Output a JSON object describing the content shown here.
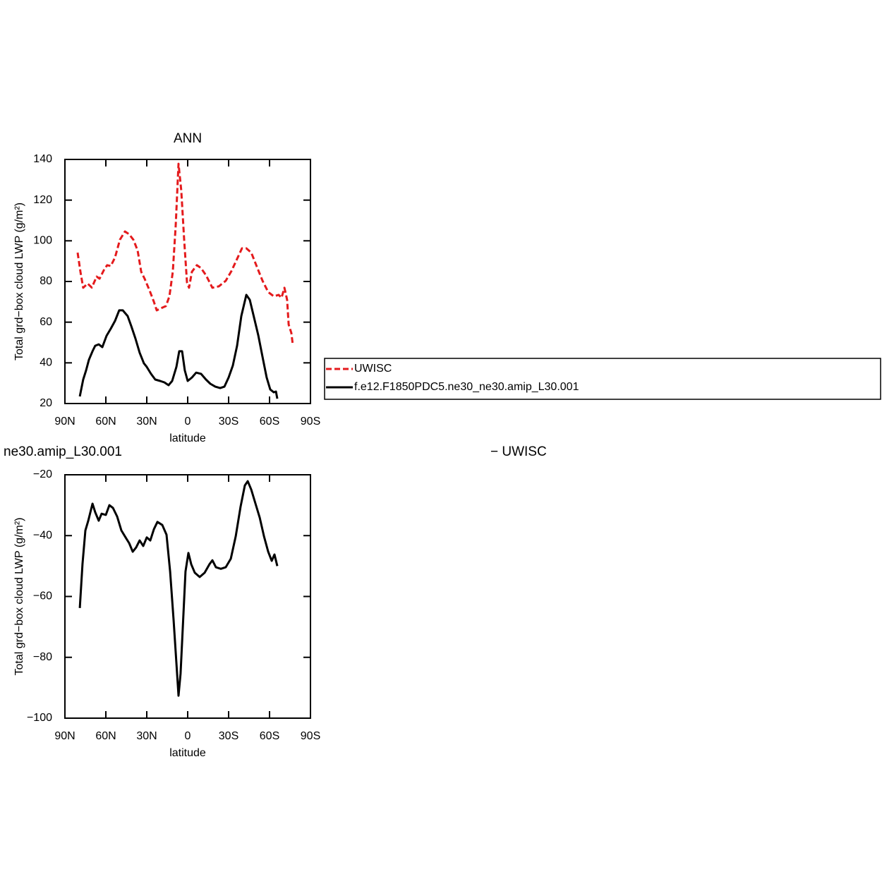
{
  "chart_data": [
    {
      "type": "line",
      "title": "ANN",
      "xlabel": "latitude",
      "ylabel": "Total grd−box cloud LWP (g/m²)",
      "xlim": [
        90,
        -90
      ],
      "xticks": [
        {
          "value": 90,
          "label": "90N"
        },
        {
          "value": 60,
          "label": "60N"
        },
        {
          "value": 30,
          "label": "30N"
        },
        0,
        {
          "value": -30,
          "label": "30S"
        },
        {
          "value": -60,
          "label": "60S"
        },
        {
          "value": -90,
          "label": "90S"
        }
      ],
      "ylim": [
        20,
        140
      ],
      "yticks": [
        20,
        40,
        60,
        80,
        100,
        120,
        140
      ],
      "legend": "right",
      "series": [
        {
          "name": "UWISC",
          "color": "#e41a1c",
          "dashed": true,
          "x": [
            80.7,
            78.6,
            76.6,
            73.4,
            70.3,
            66.7,
            64.6,
            61,
            59,
            56.4,
            53.3,
            49.7,
            46,
            42.9,
            39.8,
            36.7,
            34.1,
            31.6,
            27.9,
            24.8,
            22.7,
            19.7,
            16,
            13.4,
            10.9,
            8.8,
            6.7,
            4.7,
            2.6,
            0.5,
            -1,
            -3.1,
            -6.7,
            -9.8,
            -13.4,
            -18.1,
            -22.8,
            -27.9,
            -32.1,
            -36.2,
            -39.8,
            -43,
            -46.6,
            -50.7,
            -54.9,
            -59,
            -63.1,
            -66.7,
            -68.8,
            -70.9,
            -72.9,
            -74,
            -76,
            -77
          ],
          "values": [
            94.2,
            84.8,
            76.9,
            79,
            77,
            82.4,
            81.4,
            86.2,
            88,
            87.6,
            91.8,
            100.5,
            104.6,
            103.2,
            100.5,
            95.3,
            84.8,
            81.4,
            75.5,
            70,
            65.8,
            66.8,
            67.9,
            72.7,
            84.8,
            107.4,
            137.9,
            124.7,
            100.5,
            79.6,
            76.9,
            84.8,
            88,
            86.6,
            83.1,
            76.9,
            77.6,
            80.3,
            85.2,
            91.1,
            96.3,
            96.3,
            94.2,
            87.3,
            80.3,
            74.8,
            72.7,
            73.4,
            72,
            76.9,
            71,
            58.8,
            54.7,
            49.1
          ]
        },
        {
          "name": "f.e12.F1850PDC5.ne30_ne30.amip_L30.001",
          "color": "#000000",
          "dashed": false,
          "x": [
            79.1,
            76.6,
            74.5,
            72.4,
            69.8,
            67.8,
            65.2,
            62.6,
            59.5,
            56.4,
            53.3,
            50.2,
            47.6,
            44,
            41.4,
            38.3,
            35.2,
            32.1,
            30,
            26.9,
            23.8,
            20.2,
            17.1,
            14,
            11.4,
            8.3,
            6.2,
            4.1,
            2.1,
            0,
            -3.1,
            -6.2,
            -9.8,
            -13.4,
            -16.6,
            -20.2,
            -23.8,
            -26.9,
            -30,
            -33.1,
            -36.2,
            -39.3,
            -43,
            -45.5,
            -48.6,
            -51.7,
            -54.8,
            -57.9,
            -60.5,
            -63.1,
            -64.7,
            -65.7
          ],
          "values": [
            23.5,
            31.8,
            36.3,
            41.5,
            45.7,
            48.4,
            49.1,
            47.7,
            53.3,
            56.8,
            60.6,
            65.8,
            65.8,
            63,
            58.1,
            51.9,
            45,
            39.8,
            38,
            34.6,
            31.8,
            31.1,
            30.4,
            29,
            31.1,
            38,
            45.7,
            45.7,
            36.3,
            31.1,
            32.8,
            35.2,
            34.6,
            31.8,
            29.7,
            28.3,
            27.6,
            28.3,
            32.8,
            38.7,
            48.4,
            63,
            73.4,
            71,
            62.3,
            53.6,
            43.2,
            32.8,
            26.9,
            25.5,
            25.9,
            22.4
          ]
        }
      ]
    },
    {
      "type": "line",
      "title": "ne30.amip_L30.001",
      "subtitle": "− UWISC",
      "xlabel": "latitude",
      "ylabel": "Total grd−box cloud LWP (g/m²)",
      "xlim": [
        90,
        -90
      ],
      "xticks": [
        {
          "value": 90,
          "label": "90N"
        },
        {
          "value": 60,
          "label": "60N"
        },
        {
          "value": 30,
          "label": "30N"
        },
        0,
        {
          "value": -30,
          "label": "30S"
        },
        {
          "value": -60,
          "label": "60S"
        },
        {
          "value": -90,
          "label": "90S"
        }
      ],
      "ylim": [
        -100,
        -20
      ],
      "yticks": [
        {
          "value": -100,
          "label": "−100"
        },
        {
          "value": -80,
          "label": "−80"
        },
        {
          "value": -60,
          "label": "−60"
        },
        {
          "value": -40,
          "label": "−40"
        },
        {
          "value": -20,
          "label": "−20"
        }
      ],
      "series": [
        {
          "color": "#000000",
          "dashed": false,
          "x": [
            79.1,
            77.1,
            75,
            72.9,
            69.8,
            67.8,
            65.2,
            63.1,
            60,
            57.4,
            54.8,
            51.7,
            48.6,
            45.5,
            42.9,
            40.3,
            37.8,
            35.2,
            32.6,
            30,
            27.4,
            24.8,
            22.2,
            18.6,
            15.5,
            12.9,
            10.3,
            8.3,
            6.7,
            5.2,
            3.1,
            1.6,
            -0.5,
            -2.6,
            -5.2,
            -8.8,
            -12.4,
            -16,
            -18.1,
            -20.7,
            -24.3,
            -27.9,
            -31.6,
            -35.2,
            -38.8,
            -41.9,
            -44,
            -46.6,
            -49.7,
            -52.8,
            -55.9,
            -59,
            -61.6,
            -63.6,
            -65.7
          ],
          "values": [
            -63.8,
            -49.4,
            -38.3,
            -35.1,
            -29.5,
            -32.3,
            -35.1,
            -32.8,
            -33.2,
            -30,
            -30.9,
            -33.7,
            -38.3,
            -40.6,
            -42.5,
            -45.3,
            -43.9,
            -41.6,
            -43.4,
            -40.6,
            -41.6,
            -37.9,
            -35.5,
            -36.5,
            -39.7,
            -51.8,
            -68,
            -81.9,
            -92.6,
            -85.4,
            -65.7,
            -51.8,
            -45.7,
            -49.4,
            -52.2,
            -53.6,
            -52.2,
            -49.4,
            -48.1,
            -50.4,
            -50.9,
            -50.4,
            -47.6,
            -40.2,
            -30.4,
            -23.5,
            -22.1,
            -24.9,
            -29.5,
            -34.1,
            -40.2,
            -45.3,
            -48.3,
            -46.2,
            -50
          ]
        }
      ]
    }
  ]
}
